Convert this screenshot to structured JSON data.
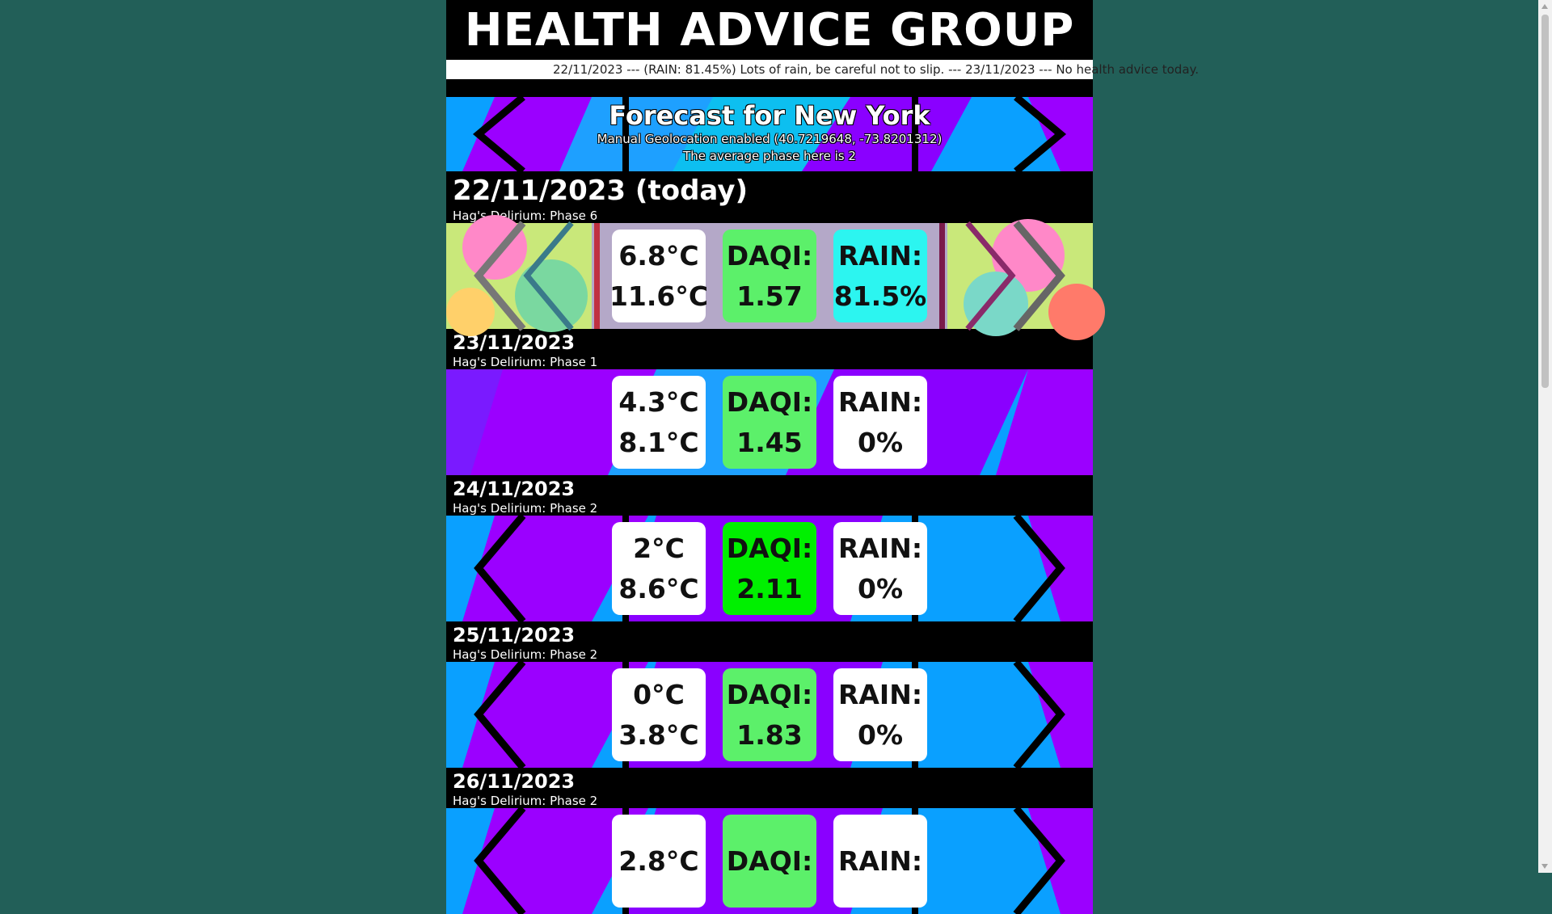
{
  "app": {
    "title": "HEALTH ADVICE GROUP",
    "ticker": "22/11/2023 --- (RAIN: 81.45%) Lots of rain, be careful not to slip. --- 23/11/2023 --- No health advice today."
  },
  "forecast": {
    "title": "Forecast for New York",
    "geolocation": "Manual Geolocation enabled (40.7219648, -73.8201312)",
    "average_phase": "The average phase here is 2"
  },
  "days": [
    {
      "date": "22/11/2023 (today)",
      "phase": "Hag's Delirium: Phase 6",
      "temp_min": "6.8°C",
      "temp_max": "11.6°C",
      "daqi_label": "DAQI:",
      "daqi": "1.57",
      "rain_label": "RAIN:",
      "rain": "81.5%"
    },
    {
      "date": "23/11/2023",
      "phase": "Hag's Delirium: Phase 1",
      "temp_min": "4.3°C",
      "temp_max": "8.1°C",
      "daqi_label": "DAQI:",
      "daqi": "1.45",
      "rain_label": "RAIN:",
      "rain": "0%"
    },
    {
      "date": "24/11/2023",
      "phase": "Hag's Delirium: Phase 2",
      "temp_min": "2°C",
      "temp_max": "8.6°C",
      "daqi_label": "DAQI:",
      "daqi": "2.11",
      "rain_label": "RAIN:",
      "rain": "0%"
    },
    {
      "date": "25/11/2023",
      "phase": "Hag's Delirium: Phase 2",
      "temp_min": "0°C",
      "temp_max": "3.8°C",
      "daqi_label": "DAQI:",
      "daqi": "1.83",
      "rain_label": "RAIN:",
      "rain": "0%"
    },
    {
      "date": "26/11/2023",
      "phase": "Hag's Delirium: Phase 2",
      "temp_min": "2.8°C",
      "temp_max": "",
      "daqi_label": "DAQI:",
      "daqi": "",
      "rain_label": "RAIN:",
      "rain": ""
    }
  ],
  "colors": {
    "page_bg": "#225f58",
    "daqi_low": "#5cf06a",
    "daqi_high": "#00f000",
    "rain_wet": "#2cf5f0"
  }
}
